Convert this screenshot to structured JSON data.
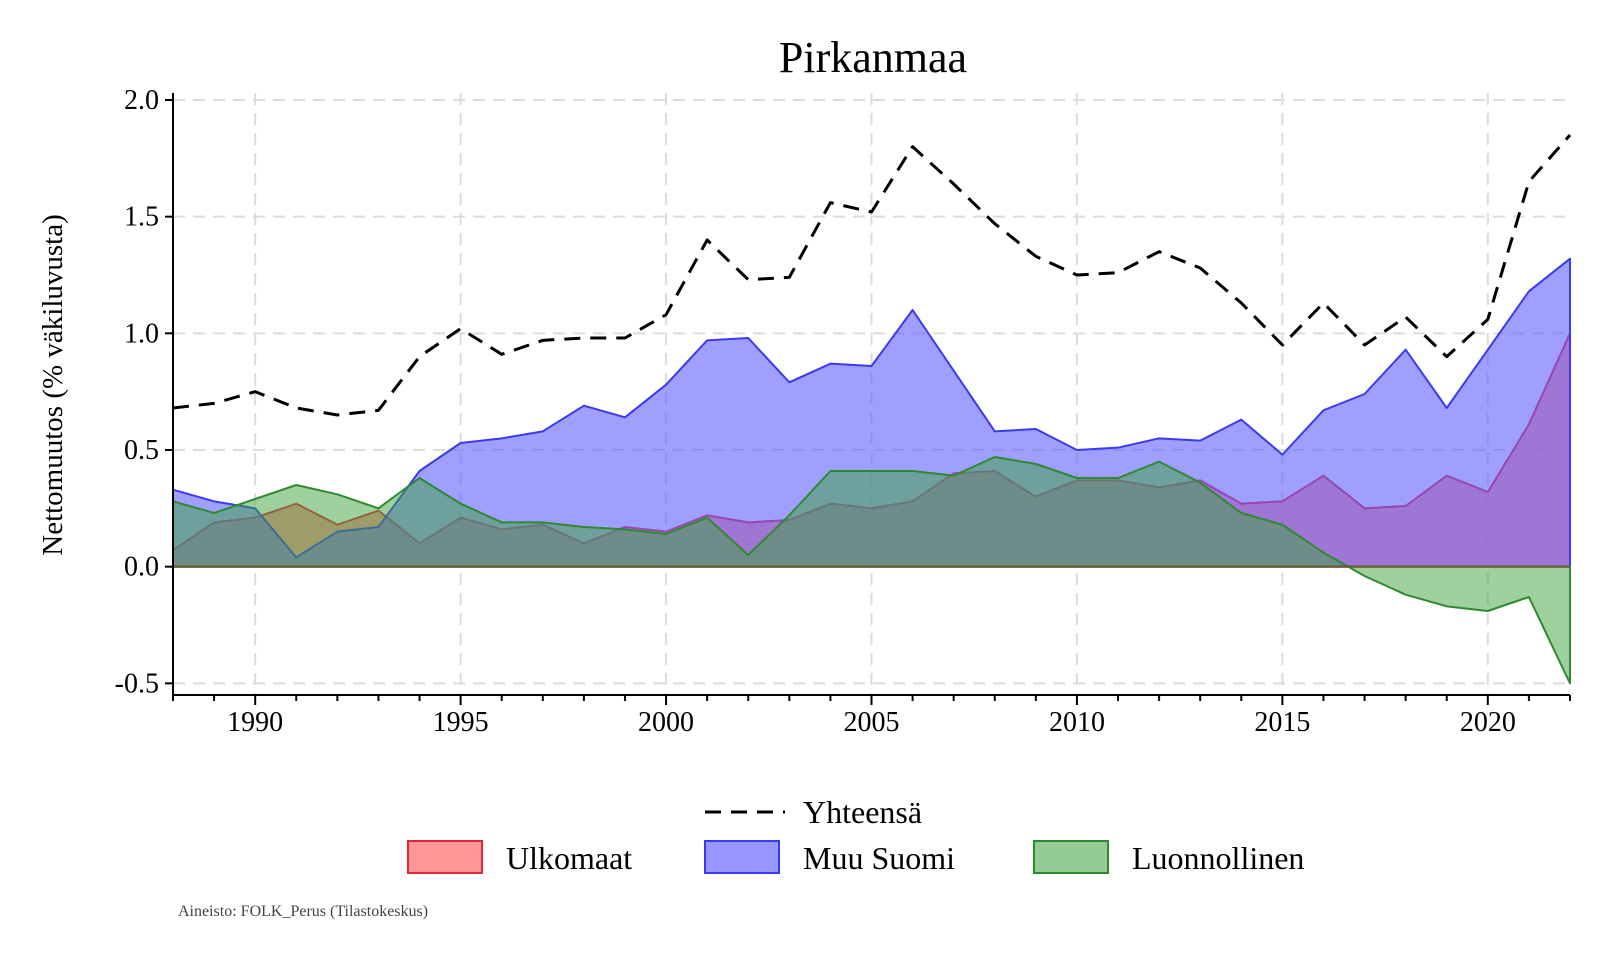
{
  "chart_data": {
    "type": "area",
    "title": "Pirkanmaa",
    "xlabel": "",
    "ylabel": "Nettomuutos (% väkiluvusta)",
    "xlim": [
      1988,
      2022
    ],
    "ylim": [
      -0.5,
      2.0
    ],
    "x_ticks": [
      1990,
      1995,
      2000,
      2005,
      2010,
      2015,
      2020
    ],
    "y_ticks": [
      -0.5,
      0.0,
      0.5,
      1.0,
      1.5,
      2.0
    ],
    "y_tick_labels": [
      "-0.5",
      "0.0",
      "0.5",
      "1.0",
      "1.5",
      "2.0"
    ],
    "grid": true,
    "legend_position": "bottom",
    "x": [
      1988,
      1989,
      1990,
      1991,
      1992,
      1993,
      1994,
      1995,
      1996,
      1997,
      1998,
      1999,
      2000,
      2001,
      2002,
      2003,
      2004,
      2005,
      2006,
      2007,
      2008,
      2009,
      2010,
      2011,
      2012,
      2013,
      2014,
      2015,
      2016,
      2017,
      2018,
      2019,
      2020,
      2021,
      2022
    ],
    "series": [
      {
        "name": "Ulkomaat",
        "kind": "area",
        "fill": "#ff6b6b",
        "stroke": "#e8243a",
        "values": [
          0.07,
          0.19,
          0.21,
          0.27,
          0.18,
          0.24,
          0.1,
          0.21,
          0.16,
          0.18,
          0.1,
          0.17,
          0.15,
          0.22,
          0.19,
          0.2,
          0.27,
          0.25,
          0.28,
          0.4,
          0.41,
          0.3,
          0.37,
          0.37,
          0.34,
          0.37,
          0.27,
          0.28,
          0.39,
          0.25,
          0.26,
          0.39,
          0.32,
          0.61,
          1.0
        ]
      },
      {
        "name": "Muu Suomi",
        "kind": "area",
        "fill": "#5f5fff",
        "stroke": "#3a3af0",
        "values": [
          0.33,
          0.28,
          0.25,
          0.04,
          0.15,
          0.17,
          0.41,
          0.53,
          0.55,
          0.58,
          0.69,
          0.64,
          0.78,
          0.97,
          0.98,
          0.79,
          0.87,
          0.86,
          1.1,
          0.84,
          0.58,
          0.59,
          0.5,
          0.51,
          0.55,
          0.54,
          0.63,
          0.48,
          0.67,
          0.74,
          0.93,
          0.68,
          0.93,
          1.18,
          1.32
        ]
      },
      {
        "name": "Luonnollinen",
        "kind": "area",
        "fill": "#3ea33e",
        "stroke": "#2f8a2f",
        "values": [
          0.28,
          0.23,
          0.29,
          0.35,
          0.31,
          0.25,
          0.38,
          0.27,
          0.19,
          0.19,
          0.17,
          0.16,
          0.14,
          0.21,
          0.05,
          0.22,
          0.41,
          0.41,
          0.41,
          0.39,
          0.47,
          0.44,
          0.38,
          0.38,
          0.45,
          0.36,
          0.23,
          0.18,
          0.06,
          -0.04,
          -0.12,
          -0.17,
          -0.19,
          -0.13,
          -0.5
        ]
      },
      {
        "name": "Yhteensä",
        "kind": "line",
        "stroke": "#000000",
        "dash": true,
        "values": [
          0.68,
          0.7,
          0.75,
          0.68,
          0.65,
          0.67,
          0.9,
          1.02,
          0.91,
          0.97,
          0.98,
          0.98,
          1.08,
          1.4,
          1.23,
          1.24,
          1.56,
          1.52,
          1.8,
          1.64,
          1.47,
          1.33,
          1.25,
          1.26,
          1.35,
          1.28,
          1.13,
          0.95,
          1.13,
          0.95,
          1.07,
          0.9,
          1.06,
          1.65,
          1.85
        ]
      }
    ],
    "legend": [
      {
        "label": "Yhteensä",
        "kind": "line"
      },
      {
        "label": "Ulkomaat",
        "kind": "area"
      },
      {
        "label": "Muu Suomi",
        "kind": "area"
      },
      {
        "label": "Luonnollinen",
        "kind": "area"
      }
    ],
    "source_note": "Aineisto: FOLK_Perus (Tilastokeskus)"
  },
  "colors": {
    "ulkomaat_fill": "#ff6b6b",
    "ulkomaat_stroke": "#e8243a",
    "muu_suomi_fill": "#5f5fff",
    "muu_suomi_stroke": "#3a3af0",
    "luonnollinen_fill": "#3ea33e",
    "luonnollinen_stroke": "#2f8a2f",
    "yhteensa_stroke": "#000000"
  }
}
